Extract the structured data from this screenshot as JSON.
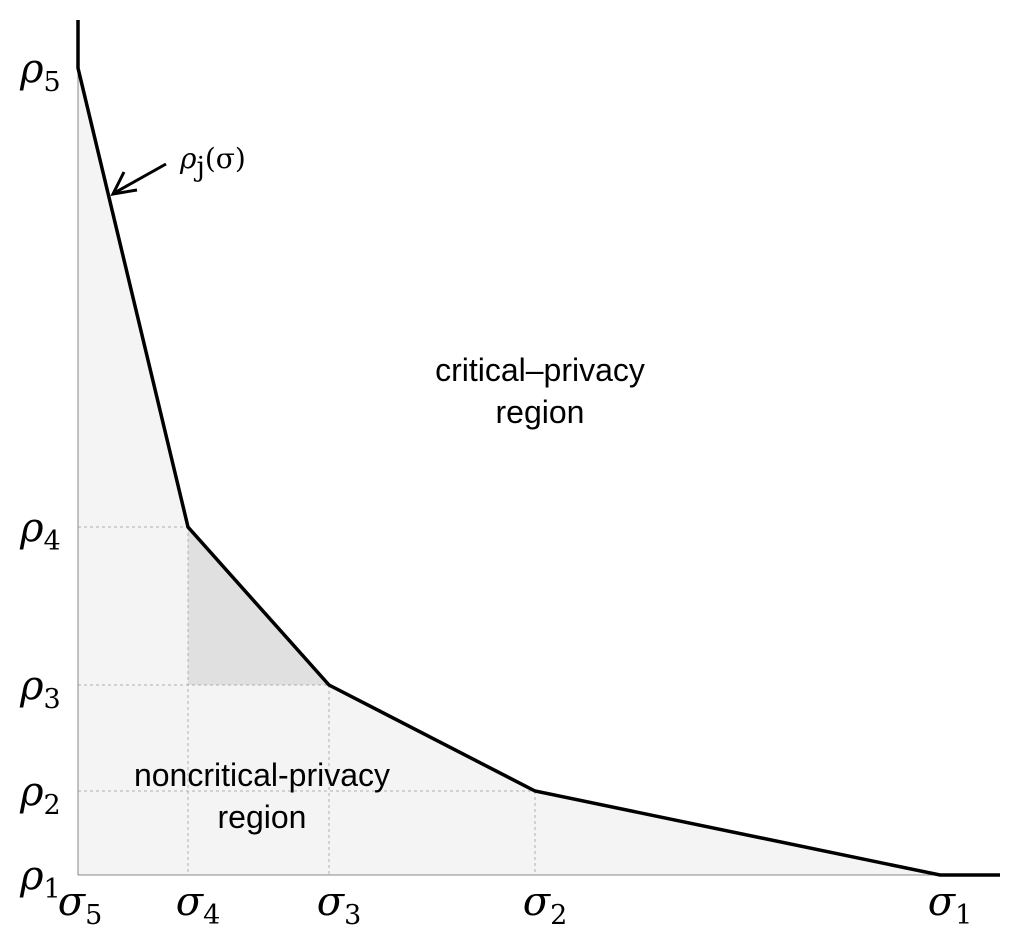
{
  "y_labels": [
    {
      "symbol": "ρ",
      "sub": "5"
    },
    {
      "symbol": "ρ",
      "sub": "4"
    },
    {
      "symbol": "ρ",
      "sub": "3"
    },
    {
      "symbol": "ρ",
      "sub": "2"
    },
    {
      "symbol": "ρ",
      "sub": "1"
    }
  ],
  "x_labels": [
    {
      "symbol": "σ",
      "sub": "5"
    },
    {
      "symbol": "σ",
      "sub": "4"
    },
    {
      "symbol": "σ",
      "sub": "3"
    },
    {
      "symbol": "σ",
      "sub": "2"
    },
    {
      "symbol": "σ",
      "sub": "1"
    }
  ],
  "curve_label": {
    "symbol": "ρ",
    "sub": "j",
    "arg": "(σ)"
  },
  "regions": {
    "critical": [
      "critical–privacy",
      "region"
    ],
    "noncritical": [
      "noncritical-privacy",
      "region"
    ]
  }
}
